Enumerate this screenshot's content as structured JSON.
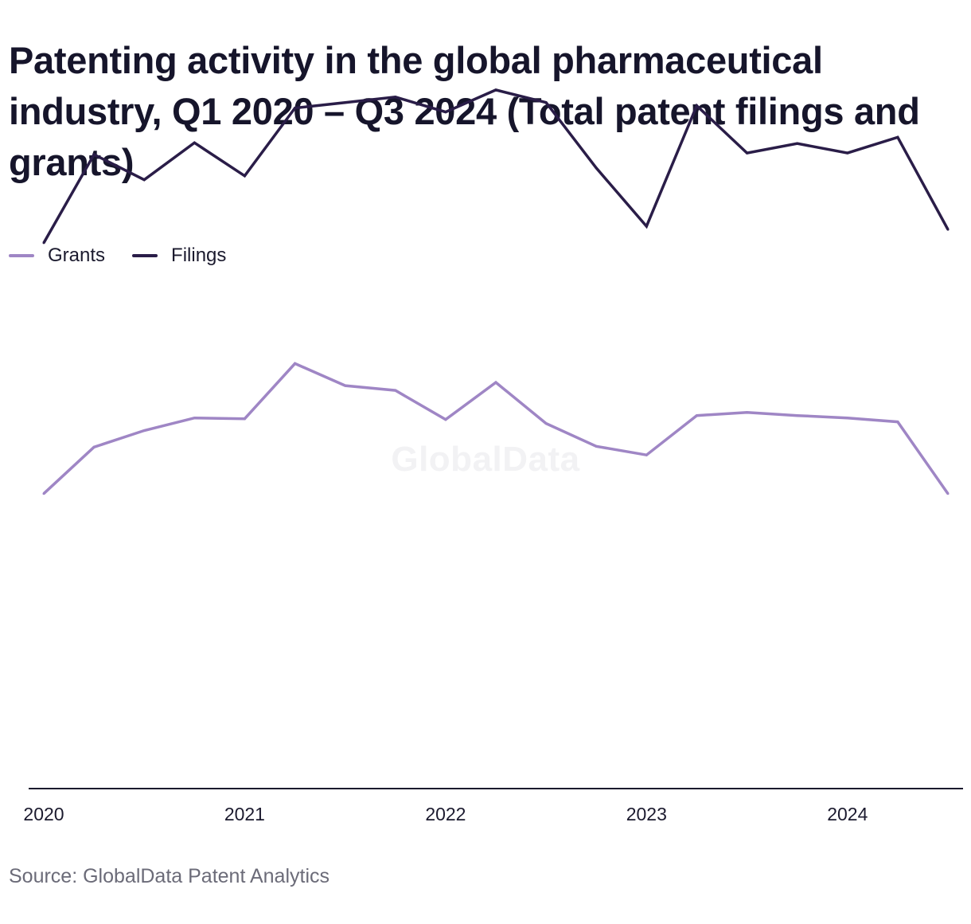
{
  "title": "Patenting activity in the global pharmaceutical industry, Q1 2020 – Q3 2024 (Total patent filings and grants)",
  "watermark": "GlobalData",
  "source": "Source: GlobalData Patent Analytics",
  "colors": {
    "grants": "#9f86c5",
    "filings": "#2a1d48",
    "axis": "#1b1a2e"
  },
  "legend": [
    {
      "label": "Grants",
      "series": "grants"
    },
    {
      "label": "Filings",
      "series": "filings"
    }
  ],
  "chart_data": {
    "type": "line",
    "title": "Patenting activity in the global pharmaceutical industry, Q1 2020 – Q3 2024 (Total patent filings and grants)",
    "x": [
      "Q1 2020",
      "Q2 2020",
      "Q3 2020",
      "Q4 2020",
      "Q1 2021",
      "Q2 2021",
      "Q3 2021",
      "Q4 2021",
      "Q1 2022",
      "Q2 2022",
      "Q3 2022",
      "Q4 2022",
      "Q1 2023",
      "Q2 2023",
      "Q3 2023",
      "Q4 2023",
      "Q1 2024",
      "Q2 2024",
      "Q3 2024"
    ],
    "x_tick_labels": [
      {
        "label": "2020",
        "at": "Q1 2020"
      },
      {
        "label": "2021",
        "at": "Q1 2021"
      },
      {
        "label": "2022",
        "at": "Q1 2022"
      },
      {
        "label": "2023",
        "at": "Q1 2023"
      },
      {
        "label": "2024",
        "at": "Q1 2024"
      }
    ],
    "y_axis_visible": false,
    "ylim": [
      0,
      100
    ],
    "grid": false,
    "legend_position": "top-left",
    "series": [
      {
        "name": "Grants",
        "key": "grants",
        "values": [
          37.4,
          43.3,
          45.4,
          47.0,
          46.9,
          53.9,
          51.1,
          50.5,
          46.8,
          51.5,
          46.3,
          43.4,
          42.3,
          47.3,
          47.7,
          47.3,
          47.0,
          46.5,
          37.4
        ]
      },
      {
        "name": "Filings",
        "key": "filings",
        "values": [
          69.2,
          80.4,
          77.2,
          81.9,
          77.7,
          86.3,
          87.0,
          87.7,
          85.8,
          88.6,
          87.0,
          78.7,
          71.3,
          86.6,
          80.6,
          81.8,
          80.6,
          82.6,
          70.9
        ]
      }
    ]
  }
}
